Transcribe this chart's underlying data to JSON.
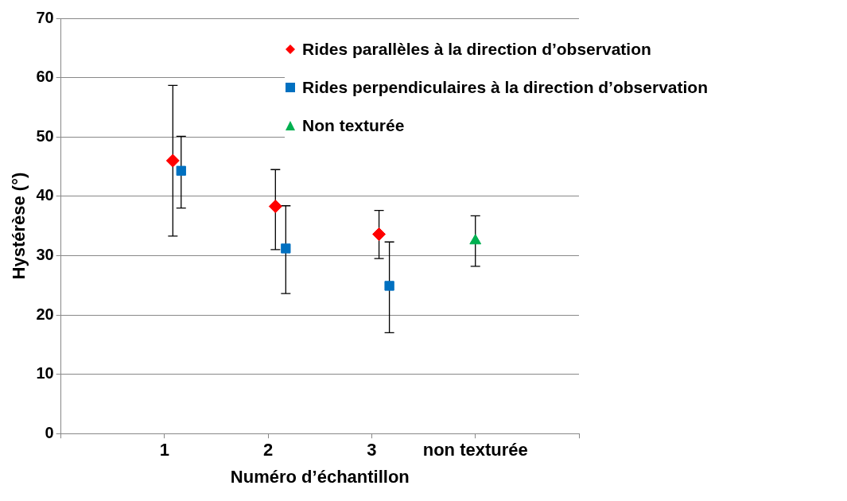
{
  "chart_data": {
    "type": "scatter",
    "xlabel": "Numéro d’échantillon",
    "ylabel": "Hystérèse (°)",
    "xlim": [
      0,
      5
    ],
    "xticks": [
      {
        "value": 0,
        "label": null
      },
      1,
      2,
      3,
      {
        "value": 4,
        "label": "non texturée"
      },
      {
        "value": 5,
        "label": null
      }
    ],
    "ylim": [
      0,
      70
    ],
    "yticks": [
      0,
      10,
      20,
      30,
      40,
      50,
      60,
      70
    ],
    "grid": "y",
    "legend": "top right",
    "series": [
      {
        "name": "Rides parallèles à la direction d’observation",
        "color": "#ff0000",
        "marker": "diamond",
        "x": [
          1.08,
          2.07,
          3.07
        ],
        "values": [
          46,
          38.3,
          33.6
        ],
        "errors": [
          [
            33.3,
            58.7
          ],
          [
            31,
            44.5
          ],
          [
            29.5,
            37.6
          ]
        ]
      },
      {
        "name": "Rides perpendiculaires à la direction d’observation",
        "color": "#0070c0",
        "marker": "square",
        "x": [
          1.16,
          2.17,
          3.17
        ],
        "values": [
          44.3,
          31.2,
          24.9
        ],
        "errors": [
          [
            38,
            50.1
          ],
          [
            23.6,
            38.4
          ],
          [
            17,
            32.3
          ]
        ]
      },
      {
        "name": "Non texturée",
        "color": "#00b050",
        "marker": "triangle",
        "x": [
          4
        ],
        "values": [
          32.5
        ],
        "errors": [
          [
            28.2,
            36.7
          ]
        ]
      }
    ]
  }
}
